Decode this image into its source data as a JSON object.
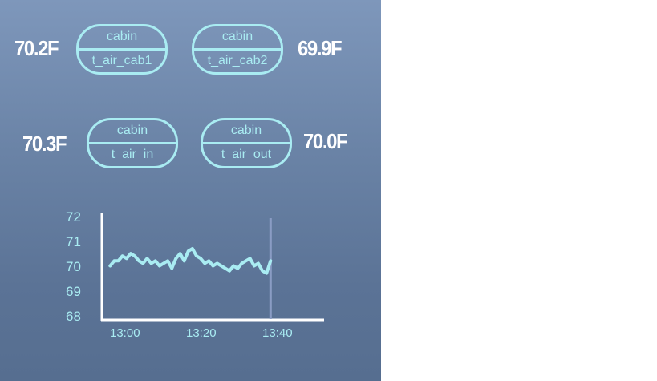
{
  "readings": {
    "cab1": "70.2F",
    "cab2": "69.9F",
    "in": "70.3F",
    "out": "70.0F"
  },
  "sensors": {
    "cab1": {
      "group": "cabin",
      "name": "t_air_cab1"
    },
    "cab2": {
      "group": "cabin",
      "name": "t_air_cab2"
    },
    "in": {
      "group": "cabin",
      "name": "t_air_in"
    },
    "out": {
      "group": "cabin",
      "name": "t_air_out"
    }
  },
  "colors": {
    "accent": "#a9ecf2",
    "reading_text": "#ffffff",
    "cursor_line": "#8a9cc4"
  },
  "chart_data": {
    "type": "line",
    "yticks": [
      "72",
      "71",
      "70",
      "69",
      "68"
    ],
    "xticks": [
      "13:00",
      "13:20",
      "13:40"
    ],
    "ylim": [
      68,
      72
    ],
    "xlim": [
      "12:57",
      "13:51"
    ],
    "cursor_x": "13:38",
    "series": [
      {
        "x": [
          "12:59",
          "13:00",
          "13:01",
          "13:02",
          "13:03",
          "13:04",
          "13:05",
          "13:06",
          "13:07",
          "13:08",
          "13:09",
          "13:10",
          "13:11",
          "13:12",
          "13:13",
          "13:14",
          "13:15",
          "13:16",
          "13:17",
          "13:18",
          "13:19",
          "13:20",
          "13:21",
          "13:22",
          "13:23",
          "13:24",
          "13:25",
          "13:26",
          "13:27",
          "13:28",
          "13:29",
          "13:30",
          "13:31",
          "13:32",
          "13:33",
          "13:34",
          "13:35",
          "13:36",
          "13:37",
          "13:38"
        ],
        "y": [
          70.0,
          70.2,
          70.2,
          70.4,
          70.3,
          70.5,
          70.4,
          70.2,
          70.1,
          70.3,
          70.1,
          70.2,
          70.0,
          70.1,
          70.2,
          69.9,
          70.3,
          70.5,
          70.2,
          70.6,
          70.7,
          70.4,
          70.3,
          70.1,
          70.2,
          70.0,
          70.1,
          70.0,
          69.9,
          69.8,
          70.0,
          69.9,
          70.1,
          70.2,
          70.3,
          70.0,
          70.1,
          69.8,
          69.7,
          70.2
        ]
      }
    ]
  }
}
